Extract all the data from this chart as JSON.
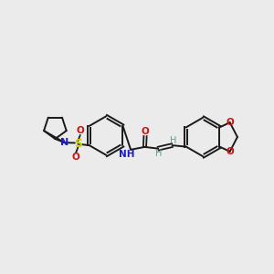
{
  "bg_color": "#ebebeb",
  "bond_color": "#1a1a1a",
  "figsize": [
    3.0,
    3.0
  ],
  "dpi": 100,
  "xlim": [
    0,
    10
  ],
  "ylim": [
    0,
    10
  ]
}
